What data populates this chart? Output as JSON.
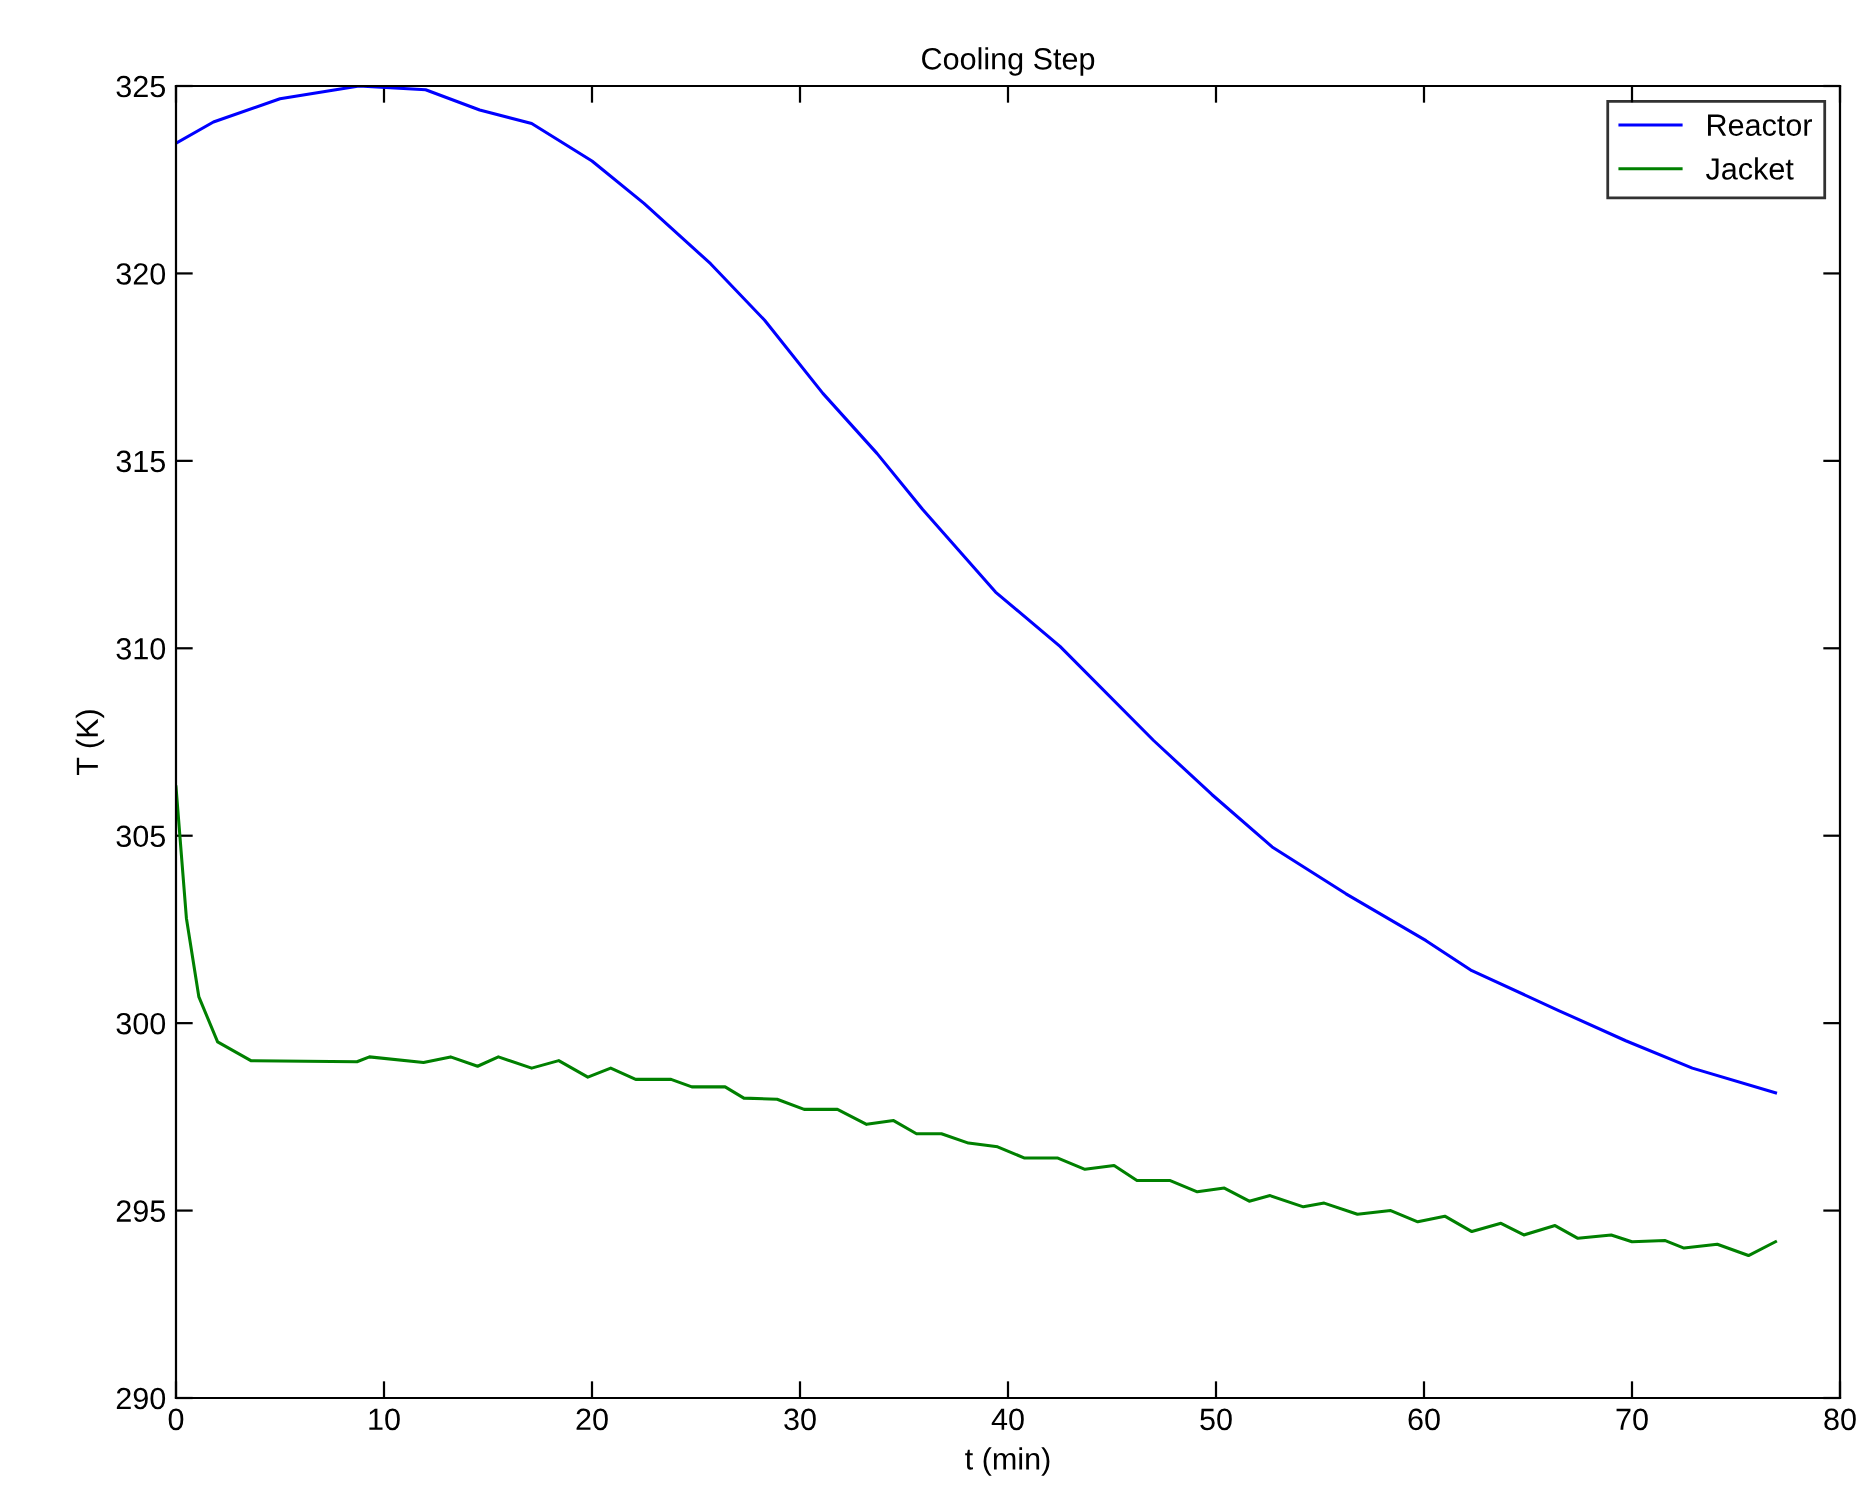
{
  "chart_data": {
    "type": "line",
    "title": "Cooling Step",
    "xlabel": "t (min)",
    "ylabel": "T (K)",
    "xlim": [
      0,
      80
    ],
    "xticks": [
      0,
      10,
      20,
      30,
      40,
      50,
      60,
      70,
      80
    ],
    "ylim": [
      290,
      325
    ],
    "yticks": [
      290,
      295,
      300,
      305,
      310,
      315,
      320,
      325
    ],
    "grid": false,
    "legend": "top right",
    "marker": "none",
    "line_style": "solid",
    "series": [
      {
        "name": "Reactor",
        "color": "#0000ff",
        "x": [
          0,
          1.8,
          5.0,
          8.8,
          12.0,
          14.6,
          17.1,
          20.0,
          22.5,
          25.7,
          28.3,
          31.1,
          33.7,
          35.9,
          39.4,
          42.5,
          47.0,
          49.8,
          52.7,
          56.25,
          60.1,
          62.3,
          66.5,
          69.7,
          72.9,
          76.9
        ],
        "values": [
          323.47,
          324.04,
          324.66,
          325.0,
          324.9,
          324.36,
          324.0,
          323.0,
          321.87,
          320.26,
          318.75,
          316.8,
          315.2,
          313.7,
          311.5,
          310.05,
          307.54,
          306.1,
          304.7,
          303.45,
          302.2,
          301.4,
          300.33,
          299.53,
          298.8,
          298.14
        ]
      },
      {
        "name": "Jacket",
        "color": "#008000",
        "x": [
          0,
          0.5,
          1.1,
          2.0,
          3.6,
          8.7,
          9.3,
          11.9,
          13.2,
          14.5,
          15.5,
          17.1,
          18.4,
          19.8,
          20.9,
          22.1,
          23.8,
          24.8,
          26.4,
          27.3,
          28.9,
          30.2,
          31.8,
          33.2,
          34.5,
          35.6,
          36.8,
          38.1,
          39.5,
          40.8,
          42.4,
          43.7,
          45.1,
          46.2,
          47.8,
          49.1,
          50.4,
          51.6,
          52.6,
          54.2,
          55.2,
          56.8,
          58.4,
          59.7,
          61.0,
          62.3,
          63.7,
          64.8,
          66.3,
          67.4,
          69.0,
          70.0,
          71.6,
          72.5,
          74.1,
          75.6,
          76.9
        ],
        "values": [
          306.3,
          302.8,
          300.7,
          299.5,
          299.0,
          298.97,
          299.1,
          298.95,
          299.1,
          298.85,
          299.1,
          298.8,
          299.0,
          298.56,
          298.8,
          298.5,
          298.5,
          298.3,
          298.3,
          298.0,
          297.97,
          297.7,
          297.7,
          297.3,
          297.4,
          297.05,
          297.05,
          296.8,
          296.7,
          296.4,
          296.4,
          296.1,
          296.2,
          295.8,
          295.8,
          295.5,
          295.6,
          295.25,
          295.4,
          295.1,
          295.2,
          294.9,
          295.0,
          294.7,
          294.85,
          294.44,
          294.66,
          294.35,
          294.6,
          294.26,
          294.35,
          294.17,
          294.2,
          294.0,
          294.1,
          293.8,
          294.17
        ]
      }
    ]
  }
}
